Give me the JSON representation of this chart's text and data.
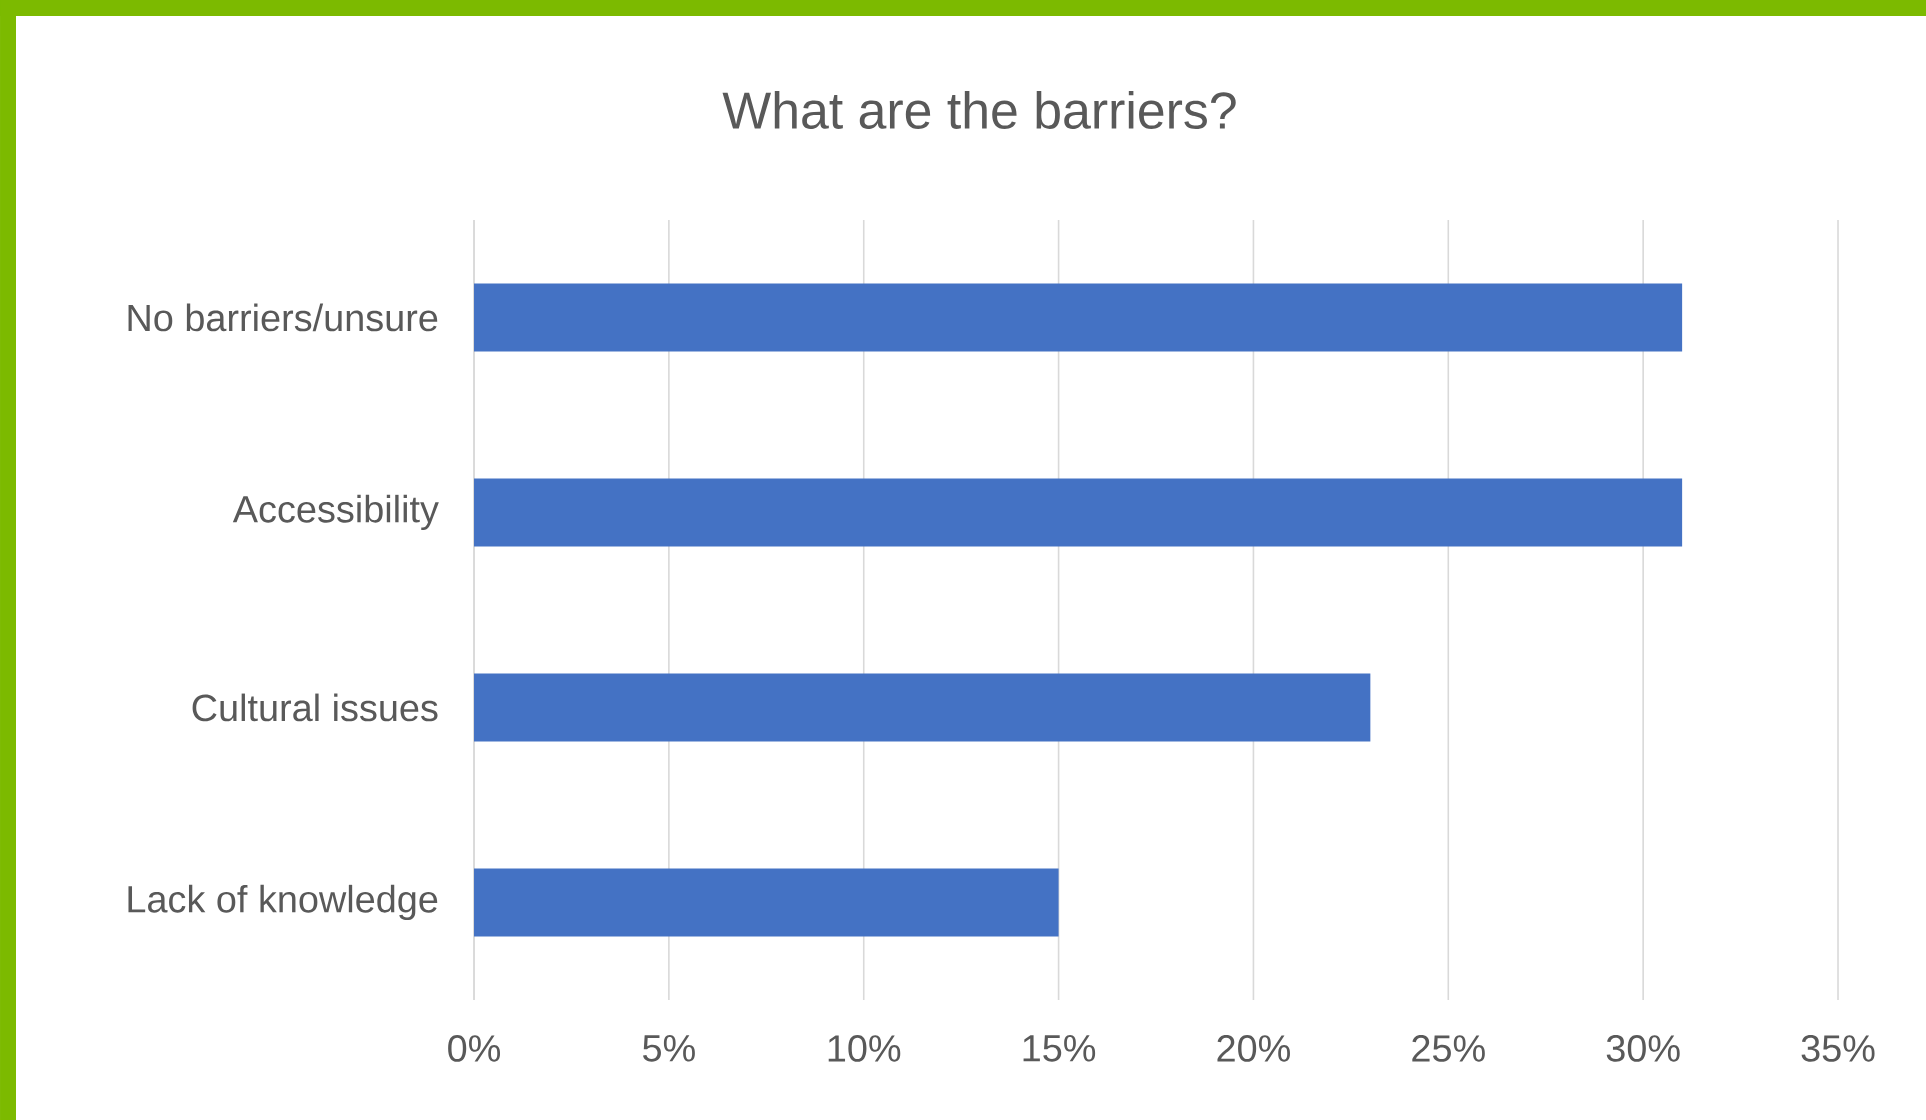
{
  "chart_data": {
    "type": "bar",
    "orientation": "horizontal",
    "title": "What are the barriers?",
    "categories": [
      "No barriers/unsure",
      "Accessibility",
      "Cultural issues",
      "Lack of knowledge"
    ],
    "values": [
      31,
      31,
      23,
      15
    ],
    "color": "#4472c4",
    "xlim": [
      0,
      35
    ],
    "xticks": [
      {
        "value": 0,
        "label": "0%"
      },
      {
        "value": 5,
        "label": "5%"
      },
      {
        "value": 10,
        "label": "10%"
      },
      {
        "value": 15,
        "label": "15%"
      },
      {
        "value": 20,
        "label": "20%"
      },
      {
        "value": 25,
        "label": "25%"
      },
      {
        "value": 30,
        "label": "30%"
      },
      {
        "value": 35,
        "label": "35%"
      }
    ],
    "grid": "x"
  }
}
